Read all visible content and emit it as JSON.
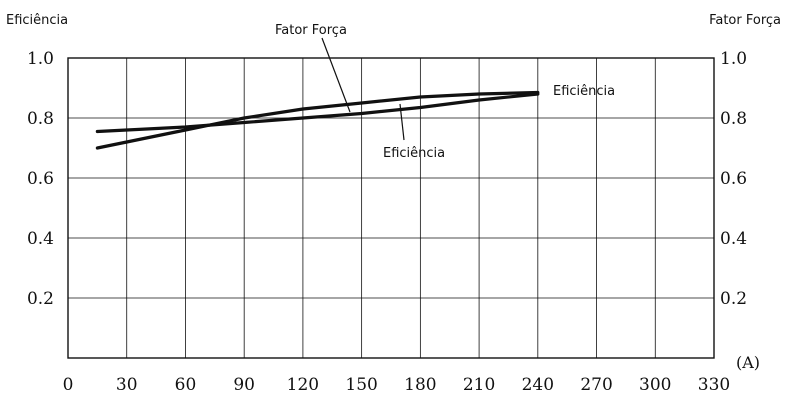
{
  "chart_data": {
    "type": "line",
    "title": "",
    "y_left_label": "Eficiência",
    "y_right_label": "Fator Força",
    "x_unit": "(A)",
    "x_ticks": [
      "0",
      "30",
      "60",
      "90",
      "120",
      "150",
      "180",
      "210",
      "240",
      "270",
      "300",
      "330"
    ],
    "y_ticks": [
      "0.2",
      "0.4",
      "0.6",
      "0.8",
      "1.0"
    ],
    "xlim": [
      0,
      330
    ],
    "ylim": [
      0,
      1.0
    ],
    "grid": true,
    "series": [
      {
        "name": "Fator Força",
        "x": [
          15,
          30,
          60,
          90,
          120,
          150,
          180,
          210,
          240
        ],
        "y": [
          0.7,
          0.72,
          0.76,
          0.8,
          0.83,
          0.85,
          0.87,
          0.88,
          0.885
        ]
      },
      {
        "name": "Eficiência",
        "x": [
          15,
          30,
          60,
          90,
          120,
          150,
          180,
          210,
          240
        ],
        "y": [
          0.755,
          0.76,
          0.77,
          0.785,
          0.8,
          0.815,
          0.835,
          0.86,
          0.88
        ]
      }
    ],
    "annotations": [
      "Fator Força",
      "Eficiência",
      "Eficiência"
    ]
  }
}
